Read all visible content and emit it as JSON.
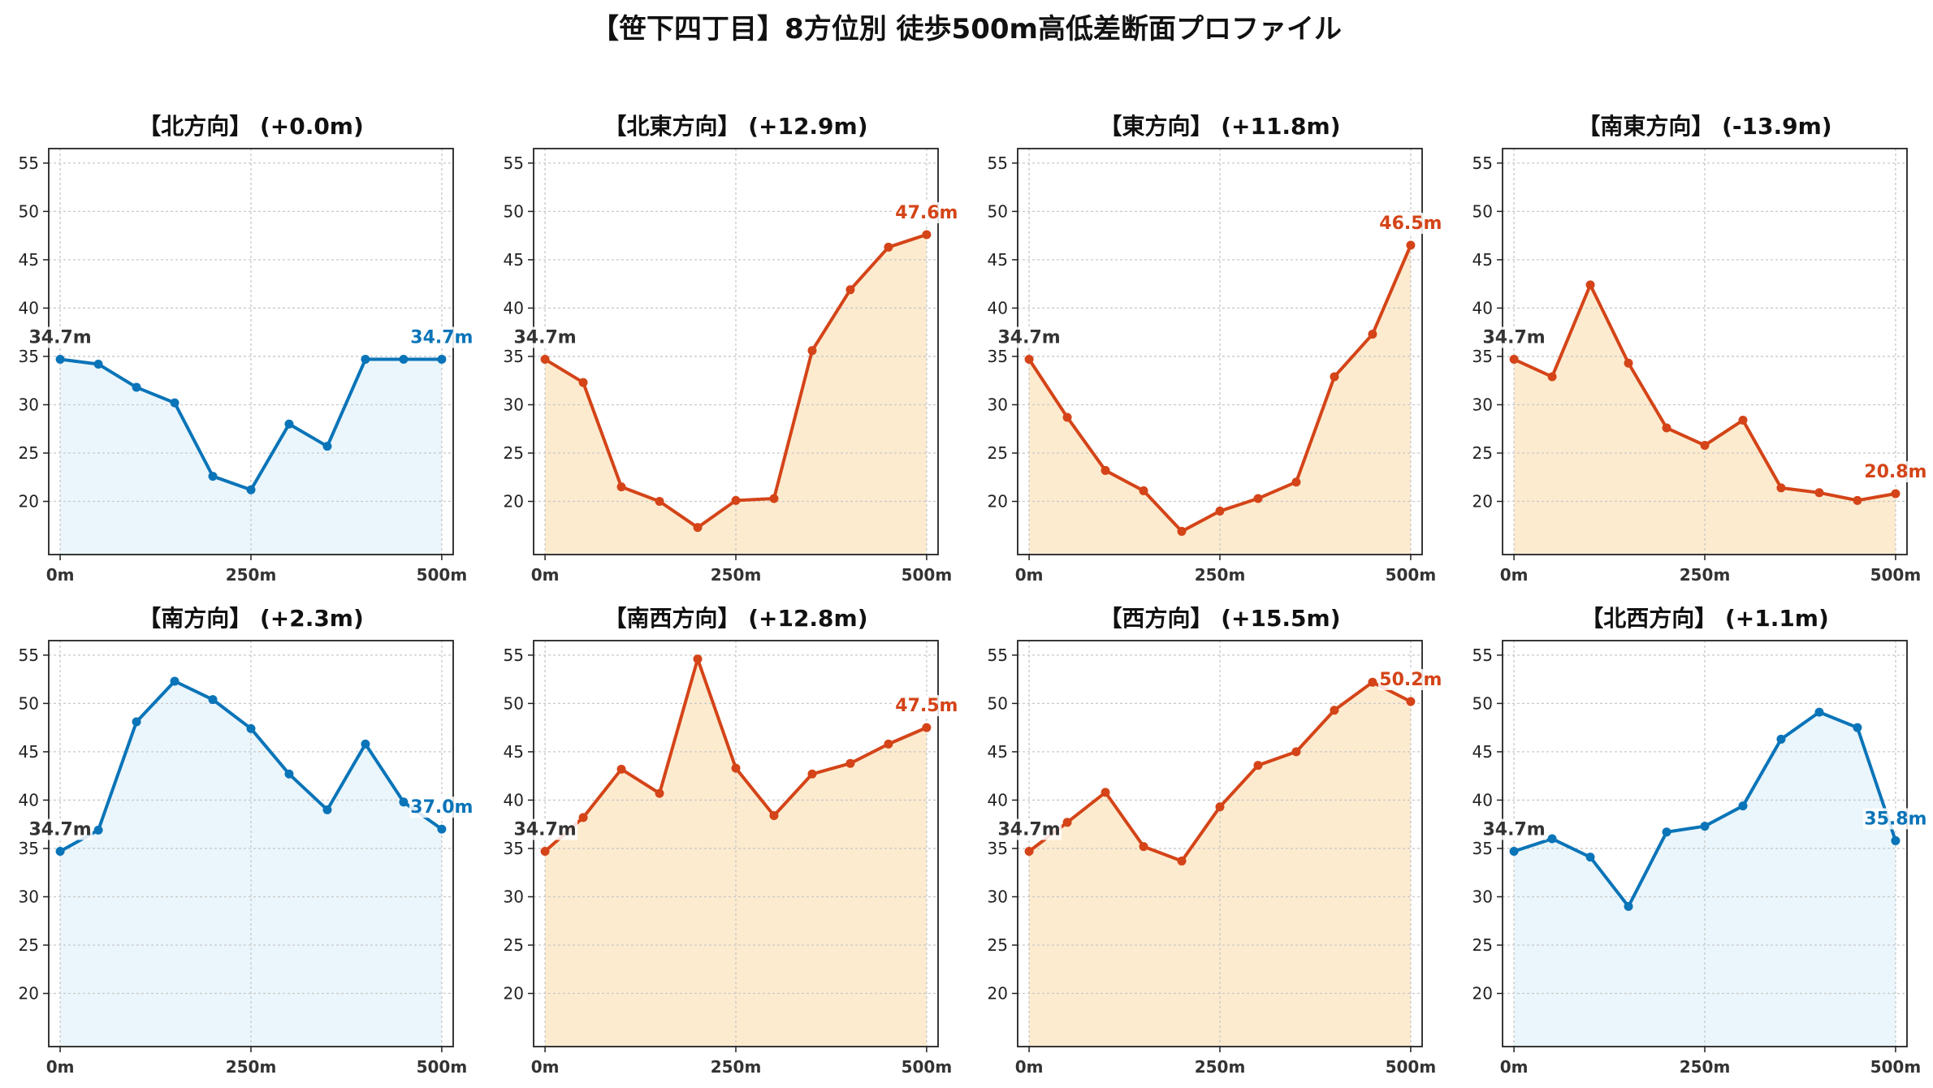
{
  "title": "【笹下四丁目】8方位別 徒歩500m高低差断面プロファイル",
  "colors": {
    "rise": "#d44418",
    "rise_fill": "#fdebcf",
    "flat": "#0a74b8",
    "flat_fill": "#eaf6fb",
    "start_label": "#333333",
    "grid": "#c8c8c8"
  },
  "chart_data": [
    {
      "type": "area",
      "title": "【北方向】 (+0.0m)",
      "trend": "flat",
      "x": [
        0,
        50,
        100,
        150,
        200,
        250,
        300,
        350,
        400,
        450,
        500
      ],
      "values": [
        34.7,
        34.2,
        31.8,
        30.2,
        22.6,
        21.2,
        28.0,
        25.7,
        34.7,
        34.7,
        34.7
      ],
      "start_label": "34.7m",
      "end_label": "34.7m",
      "xticks": [
        "0m",
        "250m",
        "500m"
      ],
      "yticks": [
        20,
        25,
        30,
        35,
        40,
        45,
        50,
        55
      ],
      "xlim": [
        -15,
        515
      ],
      "ylim": [
        14.5,
        56.5
      ],
      "grid": true
    },
    {
      "type": "area",
      "title": "【北東方向】 (+12.9m)",
      "trend": "rise",
      "x": [
        0,
        50,
        100,
        150,
        200,
        250,
        300,
        350,
        400,
        450,
        500
      ],
      "values": [
        34.7,
        32.3,
        21.5,
        20.0,
        17.3,
        20.1,
        20.3,
        35.6,
        41.9,
        46.3,
        47.6
      ],
      "start_label": "34.7m",
      "end_label": "47.6m",
      "xticks": [
        "0m",
        "250m",
        "500m"
      ],
      "yticks": [
        20,
        25,
        30,
        35,
        40,
        45,
        50,
        55
      ],
      "xlim": [
        -15,
        515
      ],
      "ylim": [
        14.5,
        56.5
      ],
      "grid": true
    },
    {
      "type": "area",
      "title": "【東方向】 (+11.8m)",
      "trend": "rise",
      "x": [
        0,
        50,
        100,
        150,
        200,
        250,
        300,
        350,
        400,
        450,
        500
      ],
      "values": [
        34.7,
        28.7,
        23.2,
        21.1,
        16.9,
        19.0,
        20.3,
        22.0,
        32.9,
        37.3,
        46.5
      ],
      "start_label": "34.7m",
      "end_label": "46.5m",
      "xticks": [
        "0m",
        "250m",
        "500m"
      ],
      "yticks": [
        20,
        25,
        30,
        35,
        40,
        45,
        50,
        55
      ],
      "xlim": [
        -15,
        515
      ],
      "ylim": [
        14.5,
        56.5
      ],
      "grid": true
    },
    {
      "type": "area",
      "title": "【南東方向】 (-13.9m)",
      "trend": "rise",
      "x": [
        0,
        50,
        100,
        150,
        200,
        250,
        300,
        350,
        400,
        450,
        500
      ],
      "values": [
        34.7,
        32.9,
        42.4,
        34.3,
        27.6,
        25.8,
        28.4,
        21.4,
        20.9,
        20.1,
        20.8
      ],
      "start_label": "34.7m",
      "end_label": "20.8m",
      "xticks": [
        "0m",
        "250m",
        "500m"
      ],
      "yticks": [
        20,
        25,
        30,
        35,
        40,
        45,
        50,
        55
      ],
      "xlim": [
        -15,
        515
      ],
      "ylim": [
        14.5,
        56.5
      ],
      "grid": true
    },
    {
      "type": "area",
      "title": "【南方向】 (+2.3m)",
      "trend": "flat",
      "x": [
        0,
        50,
        100,
        150,
        200,
        250,
        300,
        350,
        400,
        450,
        500
      ],
      "values": [
        34.7,
        36.9,
        48.1,
        52.3,
        50.4,
        47.4,
        42.7,
        39.0,
        45.8,
        39.8,
        37.0
      ],
      "start_label": "34.7m",
      "end_label": "37.0m",
      "xticks": [
        "0m",
        "250m",
        "500m"
      ],
      "yticks": [
        20,
        25,
        30,
        35,
        40,
        45,
        50,
        55
      ],
      "xlim": [
        -15,
        515
      ],
      "ylim": [
        14.5,
        56.5
      ],
      "grid": true
    },
    {
      "type": "area",
      "title": "【南西方向】 (+12.8m)",
      "trend": "rise",
      "x": [
        0,
        50,
        100,
        150,
        200,
        250,
        300,
        350,
        400,
        450,
        500
      ],
      "values": [
        34.7,
        38.2,
        43.2,
        40.7,
        54.6,
        43.3,
        38.4,
        42.7,
        43.8,
        45.8,
        47.5
      ],
      "start_label": "34.7m",
      "end_label": "47.5m",
      "xticks": [
        "0m",
        "250m",
        "500m"
      ],
      "yticks": [
        20,
        25,
        30,
        35,
        40,
        45,
        50,
        55
      ],
      "xlim": [
        -15,
        515
      ],
      "ylim": [
        14.5,
        56.5
      ],
      "grid": true
    },
    {
      "type": "area",
      "title": "【西方向】 (+15.5m)",
      "trend": "rise",
      "x": [
        0,
        50,
        100,
        150,
        200,
        250,
        300,
        350,
        400,
        450,
        500
      ],
      "values": [
        34.7,
        37.7,
        40.8,
        35.2,
        33.7,
        39.3,
        43.6,
        45.0,
        49.3,
        52.2,
        50.2
      ],
      "start_label": "34.7m",
      "end_label": "50.2m",
      "xticks": [
        "0m",
        "250m",
        "500m"
      ],
      "yticks": [
        20,
        25,
        30,
        35,
        40,
        45,
        50,
        55
      ],
      "xlim": [
        -15,
        515
      ],
      "ylim": [
        14.5,
        56.5
      ],
      "grid": true
    },
    {
      "type": "area",
      "title": "【北西方向】 (+1.1m)",
      "trend": "flat",
      "x": [
        0,
        50,
        100,
        150,
        200,
        250,
        300,
        350,
        400,
        450,
        500
      ],
      "values": [
        34.7,
        36.0,
        34.1,
        29.0,
        36.7,
        37.3,
        39.4,
        46.3,
        49.1,
        47.5,
        35.8
      ],
      "start_label": "34.7m",
      "end_label": "35.8m",
      "xticks": [
        "0m",
        "250m",
        "500m"
      ],
      "yticks": [
        20,
        25,
        30,
        35,
        40,
        45,
        50,
        55
      ],
      "xlim": [
        -15,
        515
      ],
      "ylim": [
        14.5,
        56.5
      ],
      "grid": true
    }
  ]
}
